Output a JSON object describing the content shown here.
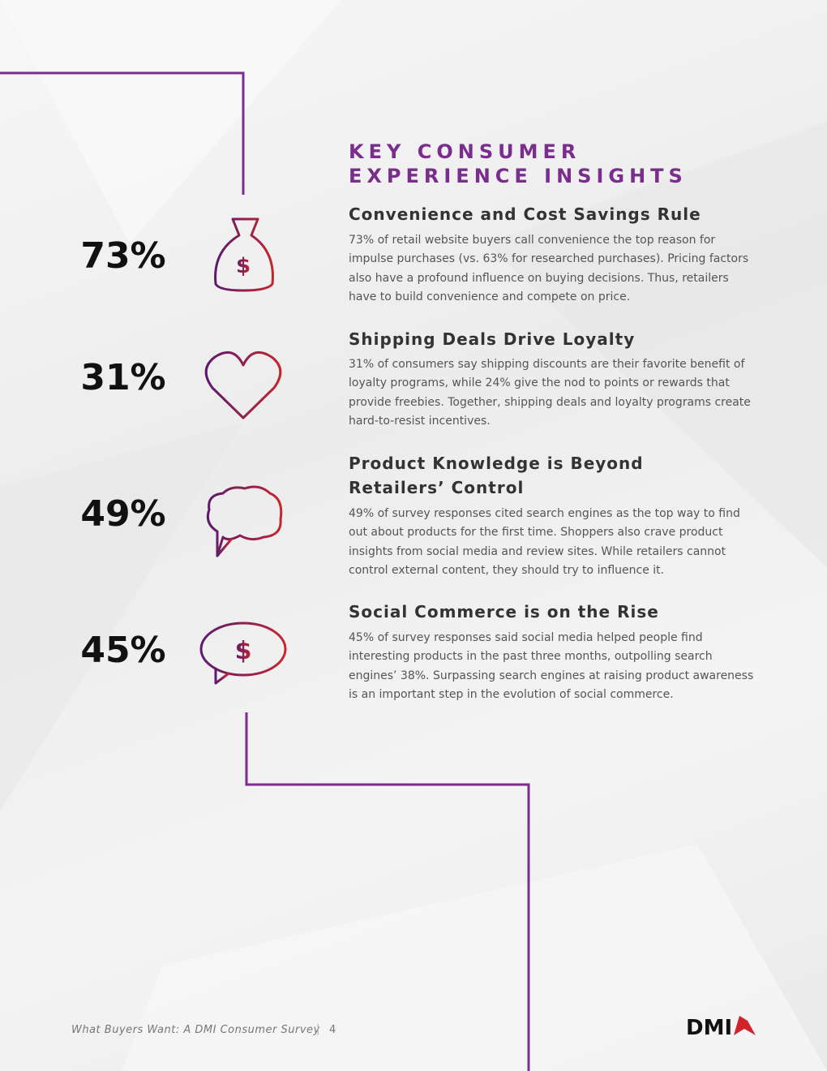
{
  "title": "KEY CONSUMER EXPERIENCE INSIGHTS",
  "insights": [
    {
      "stat": "73%",
      "heading": "Convenience and Cost Savings Rule",
      "body": "73% of retail website buyers call convenience the top reason for impulse purchases (vs. 63% for researched purchases). Pricing factors also have a profound influence on buying decisions. Thus, retailers have to build convenience and compete on price."
    },
    {
      "stat": "31%",
      "heading": "Shipping Deals Drive Loyalty",
      "body": "31% of consumers say shipping discounts are their favorite benefit of loyalty programs, while 24% give the nod to points or rewards that provide freebies. Together, shipping deals and loyalty programs create hard-to-resist incentives."
    },
    {
      "stat": "49%",
      "heading": "Product Knowledge is Beyond Retailers’ Control",
      "body": "49% of survey responses cited search engines as the top way to find out about products for the first time. Shoppers also crave product insights from social media and review sites. While retailers cannot control external content, they should try to influence it."
    },
    {
      "stat": "45%",
      "heading": "Social Commerce is on the Rise",
      "body": "45% of survey responses said social media helped people find interesting products in the past three months, outpolling search engines’ 38%. Surpassing search engines at raising product awareness is an important step in the evolution of social commerce."
    }
  ],
  "footer": {
    "text": "What Buyers Want: A DMI Consumer Survey",
    "page": "4",
    "logo": "DMI"
  }
}
